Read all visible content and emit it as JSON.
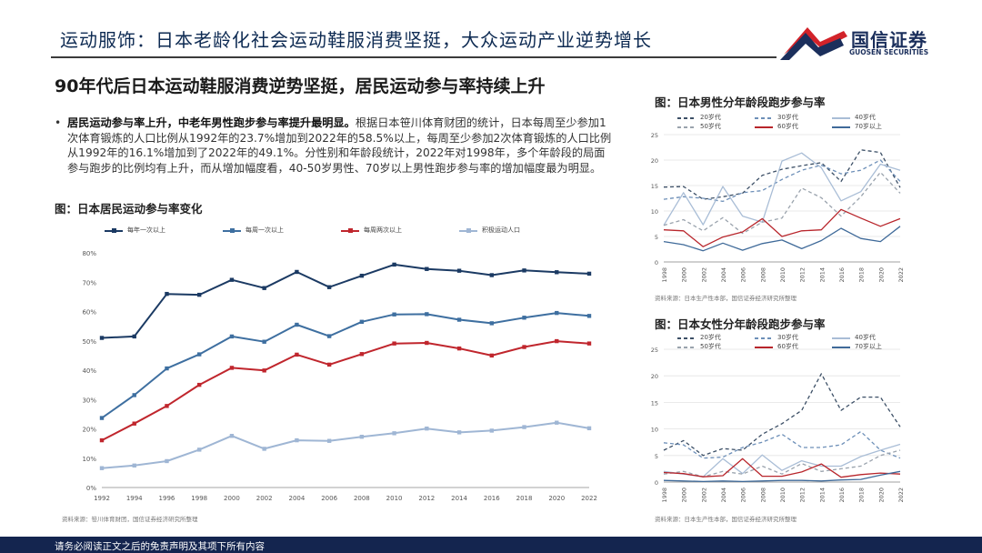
{
  "header": {
    "title": "运动服饰：日本老龄化社会运动鞋服消费坚挺，大众运动产业逆势增长",
    "logo_cn": "国信证券",
    "logo_en": "GUOSEN SECURITIES",
    "colors": {
      "navy": "#1b2f5c",
      "red": "#d2232a"
    }
  },
  "subtitle": "90年代后日本运动鞋服消费逆势坚挺，居民运动参与率持续上升",
  "bullet": {
    "marker": "•",
    "bold": "居民运动参与率上升，中老年男性跑步参与率提升最明显。",
    "text": "根据日本笹川体育财团的统计，日本每周至少参加1次体育锻炼的人口比例从1992年的23.7%增加到2022年的58.5%以上，每周至少参加2次体育锻炼的人口比例从1992年的16.1%增加到了2022年的49.1%。分性别和年龄段统计，2022年对1998年，多个年龄段的局面参与跑步的比例均有上升，而从增加幅度看，40-50岁男性、70岁以上男性跑步参与率的增加幅度最为明显。"
  },
  "footer": {
    "text": "请务必阅读正文之后的免责声明及其项下所有内容"
  },
  "chart_data": [
    {
      "id": "residents",
      "type": "line",
      "title": "图：日本居民运动参与率变化",
      "source": "资料来源：笹川体育财团，国信证券经济研究所整理",
      "x": [
        "1992",
        "1994",
        "1996",
        "1998",
        "2000",
        "2002",
        "2004",
        "2006",
        "2008",
        "2010",
        "2012",
        "2014",
        "2016",
        "2018",
        "2020",
        "2022"
      ],
      "ylim": [
        0,
        80
      ],
      "yticks": [
        "0%",
        "10%",
        "20%",
        "30%",
        "40%",
        "50%",
        "60%",
        "70%",
        "80%"
      ],
      "series": [
        {
          "name": "每年一次以上",
          "color": "#1b3a63",
          "values": [
            51.0,
            51.5,
            66.0,
            65.7,
            70.8,
            68.0,
            73.5,
            68.3,
            72.2,
            76.0,
            74.5,
            73.9,
            72.4,
            74.0,
            73.4,
            72.9
          ]
        },
        {
          "name": "每周一次以上",
          "color": "#3e6fa0",
          "values": [
            23.7,
            31.5,
            40.6,
            45.4,
            51.5,
            49.7,
            55.5,
            51.6,
            56.5,
            59.0,
            59.1,
            57.2,
            56.0,
            57.9,
            59.5,
            58.5
          ]
        },
        {
          "name": "每周两次以上",
          "color": "#c0262d",
          "values": [
            16.1,
            21.8,
            27.8,
            35.0,
            40.8,
            39.9,
            45.3,
            41.9,
            45.5,
            49.1,
            49.3,
            47.4,
            45.0,
            47.9,
            49.9,
            49.1
          ]
        },
        {
          "name": "积极运动人口",
          "color": "#9fb6d4",
          "values": [
            6.6,
            7.5,
            9.0,
            12.9,
            17.6,
            13.2,
            16.1,
            15.9,
            17.3,
            18.5,
            20.1,
            18.8,
            19.4,
            20.6,
            22.1,
            20.2
          ]
        }
      ]
    },
    {
      "id": "male",
      "type": "line",
      "title": "图：日本男性分年龄段跑步参与率",
      "source": "资料来源：日本生产性本部，国信证券经济研究所整理",
      "x": [
        "1998",
        "2000",
        "2002",
        "2004",
        "2006",
        "2008",
        "2010",
        "2012",
        "2014",
        "2016",
        "2018",
        "2020",
        "2022"
      ],
      "ylim": [
        0,
        25
      ],
      "yticks": [
        "0",
        "5",
        "10",
        "15",
        "20",
        "25"
      ],
      "series": [
        {
          "name": "20岁代",
          "color": "#3c4f66",
          "dash": "4,3",
          "values": [
            14.7,
            14.8,
            12.3,
            12.8,
            13.5,
            17.0,
            18.2,
            18.9,
            19.5,
            15.8,
            22.0,
            21.5,
            14.6
          ]
        },
        {
          "name": "30岁代",
          "color": "#6d8fb8",
          "dash": "4,3",
          "values": [
            12.3,
            12.8,
            12.5,
            11.9,
            13.6,
            14.0,
            16.2,
            18.0,
            19.0,
            17.3,
            18.0,
            20.0,
            15.8
          ]
        },
        {
          "name": "40岁代",
          "color": "#a9bdd6",
          "dash": "",
          "values": [
            7.2,
            13.6,
            7.3,
            14.8,
            9.0,
            7.8,
            19.8,
            21.4,
            18.5,
            12.0,
            13.8,
            19.2,
            18.0
          ]
        },
        {
          "name": "50岁代",
          "color": "#9aa3ad",
          "dash": "4,3",
          "values": [
            7.2,
            8.3,
            6.1,
            8.7,
            5.6,
            7.8,
            8.6,
            14.5,
            12.6,
            9.0,
            12.8,
            17.6,
            13.5
          ]
        },
        {
          "name": "60岁代",
          "color": "#b8252b",
          "dash": "",
          "values": [
            6.3,
            6.1,
            3.0,
            4.9,
            5.9,
            8.5,
            5.0,
            6.1,
            6.3,
            10.3,
            8.6,
            7.0,
            8.5
          ]
        },
        {
          "name": "70岁以上",
          "color": "#3f6a99",
          "dash": "",
          "values": [
            4.0,
            3.4,
            2.2,
            3.7,
            2.3,
            3.6,
            4.3,
            2.6,
            4.2,
            6.6,
            4.6,
            4.0,
            7.0
          ]
        }
      ]
    },
    {
      "id": "female",
      "type": "line",
      "title": "图：日本女性分年龄段跑步参与率",
      "source": "资料来源：日本生产性本部，国信证券经济研究所整理",
      "x": [
        "1998",
        "2000",
        "2002",
        "2004",
        "2006",
        "2008",
        "2010",
        "2012",
        "2014",
        "2016",
        "2018",
        "2020",
        "2022"
      ],
      "ylim": [
        0,
        25
      ],
      "yticks": [
        "0",
        "5",
        "10",
        "15",
        "20",
        "25"
      ],
      "series": [
        {
          "name": "20岁代",
          "color": "#3c4f66",
          "dash": "4,3",
          "values": [
            6.0,
            7.8,
            5.0,
            6.3,
            6.0,
            9.0,
            11.0,
            13.5,
            20.4,
            13.5,
            16.0,
            16.0,
            10.4
          ]
        },
        {
          "name": "30岁代",
          "color": "#6d8fb8",
          "dash": "4,3",
          "values": [
            7.4,
            7.0,
            4.5,
            4.7,
            6.5,
            7.5,
            9.0,
            6.5,
            6.5,
            7.0,
            9.5,
            6.0,
            4.5
          ]
        },
        {
          "name": "40岁代",
          "color": "#a9bdd6",
          "dash": "",
          "values": [
            2.0,
            1.5,
            1.0,
            4.4,
            1.6,
            5.1,
            2.2,
            4.0,
            3.0,
            3.0,
            4.8,
            6.0,
            7.1
          ]
        },
        {
          "name": "50岁代",
          "color": "#9aa3ad",
          "dash": "4,3",
          "values": [
            1.5,
            2.0,
            1.0,
            2.0,
            1.5,
            3.0,
            1.5,
            3.5,
            2.0,
            2.5,
            3.0,
            5.0,
            6.0
          ]
        },
        {
          "name": "60岁代",
          "color": "#b8252b",
          "dash": "",
          "values": [
            1.8,
            1.6,
            1.0,
            1.2,
            4.4,
            1.1,
            1.1,
            1.9,
            3.4,
            0.9,
            1.4,
            1.7,
            1.5
          ]
        },
        {
          "name": "70岁以上",
          "color": "#3f6a99",
          "dash": "",
          "values": [
            0.3,
            0.2,
            0.1,
            0.2,
            0.1,
            0.2,
            0.3,
            0.3,
            0.2,
            0.4,
            0.5,
            1.3,
            2.0
          ]
        }
      ]
    }
  ]
}
